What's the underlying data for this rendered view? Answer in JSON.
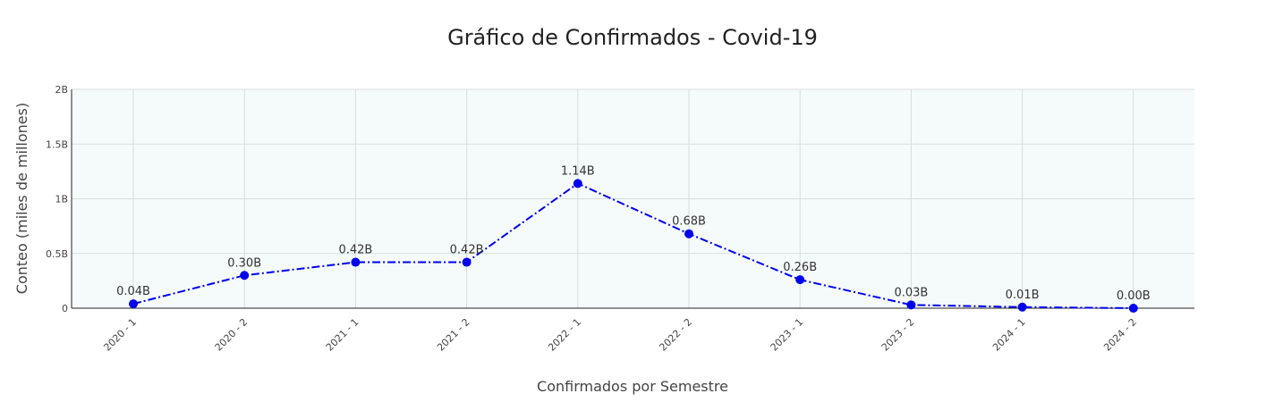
{
  "chart_data": {
    "type": "line",
    "title": "Gráfico de Confirmados - Covid-19",
    "xlabel": "Confirmados por Semestre",
    "ylabel": "Conteo (miles de millones)",
    "categories": [
      "2020 - 1",
      "2020 - 2",
      "2021 - 1",
      "2021 - 2",
      "2022 - 1",
      "2022 - 2",
      "2023 - 1",
      "2023 - 2",
      "2024 - 1",
      "2024 - 2"
    ],
    "values": [
      0.04,
      0.3,
      0.42,
      0.42,
      1.14,
      0.68,
      0.26,
      0.03,
      0.01,
      0.0
    ],
    "data_labels": [
      "0.04B",
      "0.30B",
      "0.42B",
      "0.42B",
      "1.14B",
      "0.68B",
      "0.26B",
      "0.03B",
      "0.01B",
      "0.00B"
    ],
    "ylim": [
      0,
      2
    ],
    "yticks": [
      0,
      0.5,
      1,
      1.5,
      2
    ],
    "ytick_labels": [
      "0",
      "0.5B",
      "1B",
      "1.5B",
      "2B"
    ],
    "grid": true,
    "line_style": "dashdot",
    "colors": {
      "line": "#0000ee",
      "marker": "#0000ee",
      "plot_background": "#f5fbfb",
      "grid": "#d8dcdc"
    }
  }
}
